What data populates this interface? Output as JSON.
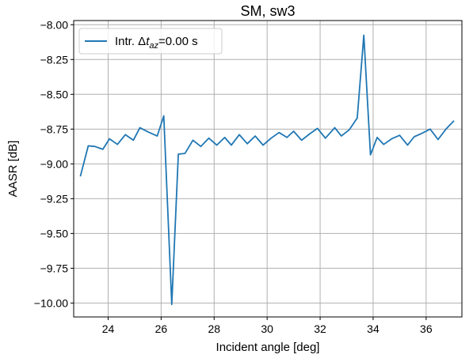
{
  "chart_data": {
    "type": "line",
    "title": "SM, sw3",
    "xlabel": "Incident angle [deg]",
    "ylabel": "AASR [dB]",
    "xlim": [
      22.7,
      37.35
    ],
    "ylim": [
      -10.1,
      -7.97
    ],
    "xticks": [
      24,
      26,
      28,
      30,
      32,
      34,
      36
    ],
    "yticks": [
      -8.0,
      -8.25,
      -8.5,
      -8.75,
      -9.0,
      -9.25,
      -9.5,
      -9.75,
      -10.0
    ],
    "xtick_labels": [
      "24",
      "26",
      "28",
      "30",
      "32",
      "34",
      "36"
    ],
    "ytick_labels": [
      "−8.00",
      "−8.25",
      "−8.50",
      "−8.75",
      "−9.00",
      "−9.25",
      "−9.50",
      "−9.75",
      "−10.00"
    ],
    "grid": true,
    "legend_position": "upper-left",
    "series": [
      {
        "name_prefix": "Intr. Δ",
        "name_var": "t",
        "name_sub": "az",
        "name_suffix": "=0.00 s",
        "color": "#1f77b4",
        "x": [
          22.95,
          23.25,
          23.5,
          23.8,
          24.05,
          24.35,
          24.65,
          24.95,
          25.2,
          25.5,
          25.85,
          26.1,
          26.4,
          26.65,
          26.9,
          27.2,
          27.5,
          27.8,
          28.1,
          28.4,
          28.65,
          28.95,
          29.25,
          29.55,
          29.85,
          30.15,
          30.45,
          30.75,
          31.0,
          31.3,
          31.6,
          31.9,
          32.2,
          32.55,
          32.8,
          33.1,
          33.4,
          33.65,
          33.9,
          34.15,
          34.4,
          34.7,
          35.0,
          35.3,
          35.55,
          35.85,
          36.15,
          36.45,
          36.75,
          37.05
        ],
        "y": [
          -9.09,
          -8.87,
          -8.875,
          -8.895,
          -8.82,
          -8.86,
          -8.79,
          -8.83,
          -8.74,
          -8.77,
          -8.8,
          -8.655,
          -10.01,
          -8.93,
          -8.925,
          -8.83,
          -8.875,
          -8.815,
          -8.865,
          -8.81,
          -8.865,
          -8.79,
          -8.855,
          -8.8,
          -8.865,
          -8.815,
          -8.775,
          -8.81,
          -8.765,
          -8.83,
          -8.785,
          -8.745,
          -8.815,
          -8.74,
          -8.8,
          -8.755,
          -8.67,
          -8.075,
          -8.935,
          -8.81,
          -8.86,
          -8.82,
          -8.795,
          -8.865,
          -8.805,
          -8.78,
          -8.75,
          -8.825,
          -8.75,
          -8.69
        ]
      }
    ]
  }
}
